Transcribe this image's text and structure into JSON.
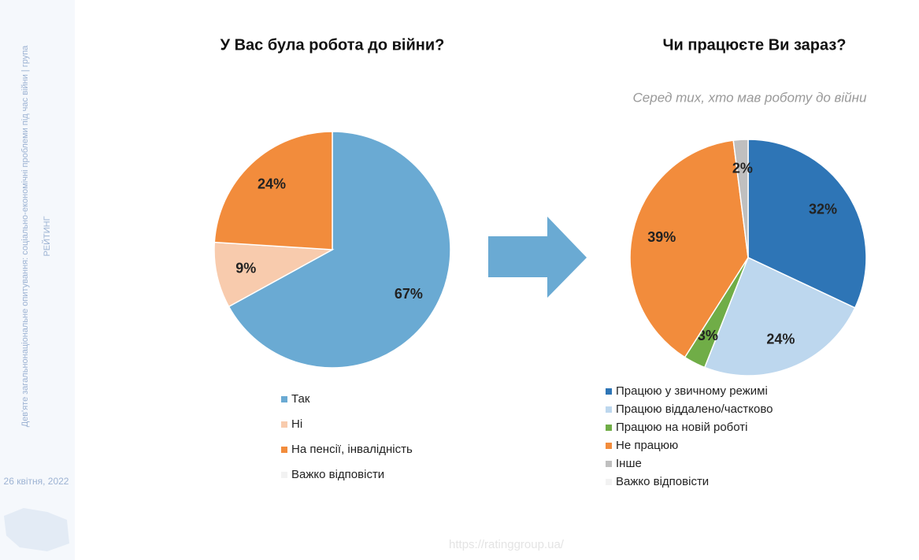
{
  "chart_data": [
    {
      "type": "pie",
      "title": "У Вас була робота до війни?",
      "categories": [
        "Так",
        "Ні",
        "На пенсії, інвалідність",
        "Важко відповісти"
      ],
      "values": [
        67,
        9,
        24,
        0
      ],
      "value_labels": [
        "67%",
        "9%",
        "24%",
        null
      ],
      "colors": [
        "#6aaad3",
        "#f8cbad",
        "#f28c3c",
        "#f2f2f2"
      ]
    },
    {
      "type": "pie",
      "title": "Чи працюєте Ви зараз?",
      "subtitle": "Серед тих, хто мав роботу до війни",
      "categories": [
        "Працюю у звичному режимі",
        "Працюю віддалено/частково",
        "Працюю на новій роботі",
        "Не працюю",
        "Інше",
        "Важко відповісти"
      ],
      "values": [
        32,
        24,
        3,
        39,
        2,
        0
      ],
      "value_labels": [
        "32%",
        "24%",
        "3%",
        "39%",
        "2%",
        null
      ],
      "colors": [
        "#2e75b6",
        "#bdd7ee",
        "#70ad47",
        "#f28c3c",
        "#bfbfbf",
        "#f2f2f2"
      ]
    }
  ],
  "sidebar": {
    "line1": "Дев'яте загальнонаціональне опитування: соціально-економічні проблеми під час війни | група",
    "line2": "РЕЙТИНГ",
    "date": "26 квітня, 2022"
  },
  "footer": {
    "url": "https://ratinggroup.ua/"
  }
}
